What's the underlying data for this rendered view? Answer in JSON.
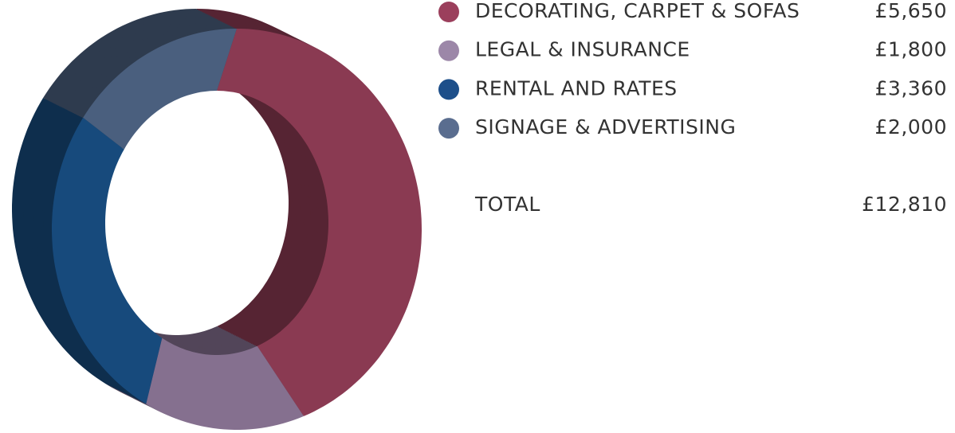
{
  "chart_data": {
    "type": "pie",
    "donut": true,
    "categories": [
      "DECORATING, CARPET & SOFAS",
      "LEGAL & INSURANCE",
      "RENTAL AND RATES",
      "SIGNAGE & ADVERTISING"
    ],
    "values": [
      5650,
      1800,
      3360,
      2000
    ],
    "value_labels": [
      "£5,650",
      "£1,800",
      "£3,360",
      "£2,000"
    ],
    "colors": [
      "#8a3a52",
      "#85708f",
      "#174a7c",
      "#4a5f7e"
    ],
    "legend_colors": [
      "#9b3f5c",
      "#9c87a8",
      "#1d4f8a",
      "#5a6d8f"
    ],
    "total": {
      "label": "TOTAL",
      "value": 12810,
      "value_label": "£12,810"
    }
  }
}
